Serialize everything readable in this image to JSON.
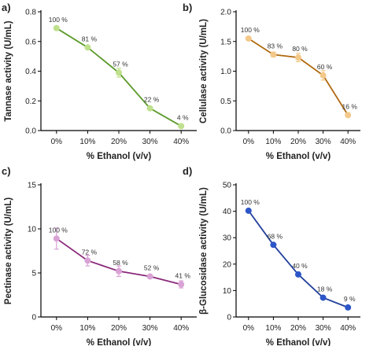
{
  "chart_data": [
    {
      "type": "line",
      "panel": "a)",
      "xlabel": "% Ethanol (v/v)",
      "ylabel": "Tannase activity (U/mL)",
      "categories": [
        "0%",
        "10%",
        "20%",
        "30%",
        "40%"
      ],
      "values": [
        0.69,
        0.56,
        0.39,
        0.15,
        0.03
      ],
      "errors": [
        0.0,
        0.01,
        0.03,
        0.01,
        0.0
      ],
      "data_labels": [
        "100 %",
        "81 %",
        "57 %",
        "22 %",
        "4 %"
      ],
      "ylim": [
        0,
        0.8
      ],
      "yticks": [
        0.0,
        0.2,
        0.4,
        0.6,
        0.8
      ],
      "ytick_labels": [
        "0.0",
        "0.2",
        "0.4",
        "0.6",
        "0.8"
      ],
      "line_color": "#5a9a2a",
      "marker_color": "#bfe08c"
    },
    {
      "type": "line",
      "panel": "b)",
      "xlabel": "% Ethanol (v/v)",
      "ylabel": "Cellulase activity (U/mL)",
      "categories": [
        "0%",
        "10%",
        "20%",
        "30%",
        "40%"
      ],
      "values": [
        1.55,
        1.28,
        1.23,
        0.93,
        0.26
      ],
      "errors": [
        0.02,
        0.04,
        0.07,
        0.08,
        0.0
      ],
      "data_labels": [
        "100 %",
        "83 %",
        "80 %",
        "60 %",
        "16 %"
      ],
      "ylim": [
        0,
        2.0
      ],
      "yticks": [
        0.0,
        0.5,
        1.0,
        1.5,
        2.0
      ],
      "ytick_labels": [
        "0.0",
        "0.5",
        "1.0",
        "1.5",
        "2.0"
      ],
      "line_color": "#b06a10",
      "marker_color": "#f3c98a"
    },
    {
      "type": "line",
      "panel": "c)",
      "xlabel": "% Ethanol (v/v)",
      "ylabel": "Pectinase activity (U/mL)",
      "categories": [
        "0%",
        "10%",
        "20%",
        "30%",
        "40%"
      ],
      "values": [
        8.9,
        6.4,
        5.2,
        4.6,
        3.7
      ],
      "errors": [
        1.2,
        0.6,
        0.6,
        0.2,
        0.4
      ],
      "data_labels": [
        "100 %",
        "72 %",
        "58 %",
        "52 %",
        "41 %"
      ],
      "ylim": [
        0,
        15
      ],
      "yticks": [
        0,
        5,
        10,
        15
      ],
      "ytick_labels": [
        "0",
        "5",
        "10",
        "15"
      ],
      "line_color": "#8a2a7a",
      "marker_color": "#d9a2d4"
    },
    {
      "type": "line",
      "panel": "d)",
      "xlabel": "% Ethanol (v/v)",
      "ylabel": "β-Glucosidase activity (U/mL)",
      "categories": [
        "0%",
        "10%",
        "20%",
        "30%",
        "40%"
      ],
      "values": [
        40.2,
        27.3,
        16.1,
        7.3,
        3.6
      ],
      "errors": [
        0.5,
        0.4,
        0.3,
        0.2,
        0.1
      ],
      "data_labels": [
        "100 %",
        "68 %",
        "40 %",
        "18 %",
        "9 %"
      ],
      "ylim": [
        0,
        50
      ],
      "yticks": [
        0,
        10,
        20,
        30,
        40,
        50
      ],
      "ytick_labels": [
        "0",
        "10",
        "20",
        "30",
        "40",
        "50"
      ],
      "line_color": "#1f3f9a",
      "marker_color": "#2d56c8"
    }
  ]
}
